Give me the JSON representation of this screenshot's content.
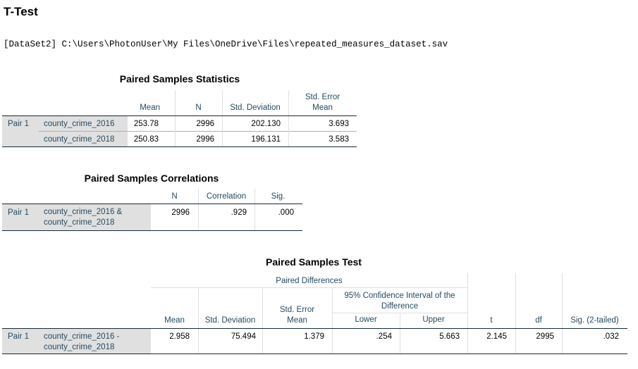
{
  "page_title": "T-Test",
  "dataset_line": "[DataSet2] C:\\Users\\PhotonUser\\My Files\\OneDrive\\Files\\repeated_measures_dataset.sav",
  "stats": {
    "title": "Paired Samples Statistics",
    "headers": [
      "Mean",
      "N",
      "Std. Deviation",
      "Std. Error\nMean"
    ],
    "pair_label": "Pair 1",
    "rows": [
      {
        "var": "county_crime_2016",
        "mean": "253.78",
        "n": "2996",
        "sd": "202.130",
        "se": "3.693"
      },
      {
        "var": "county_crime_2018",
        "mean": "250.83",
        "n": "2996",
        "sd": "196.131",
        "se": "3.583"
      }
    ]
  },
  "corr": {
    "title": "Paired Samples Correlations",
    "headers": [
      "N",
      "Correlation",
      "Sig."
    ],
    "pair_label": "Pair 1",
    "row": {
      "var": "county_crime_2016 &\ncounty_crime_2018",
      "n": "2996",
      "corr": ".929",
      "sig": ".000"
    }
  },
  "test": {
    "title": "Paired Samples Test",
    "group_header": "Paired Differences",
    "ci_header": "95% Confidence Interval of the\nDifference",
    "headers": [
      "Mean",
      "Std. Deviation",
      "Std. Error\nMean",
      "Lower",
      "Upper",
      "t",
      "df",
      "Sig. (2-tailed)"
    ],
    "pair_label": "Pair 1",
    "row": {
      "var": "county_crime_2016 -\ncounty_crime_2018",
      "mean": "2.958",
      "sd": "75.494",
      "se": "1.379",
      "lower": ".254",
      "upper": "5.663",
      "t": "2.145",
      "df": "2995",
      "sig": ".032"
    }
  }
}
